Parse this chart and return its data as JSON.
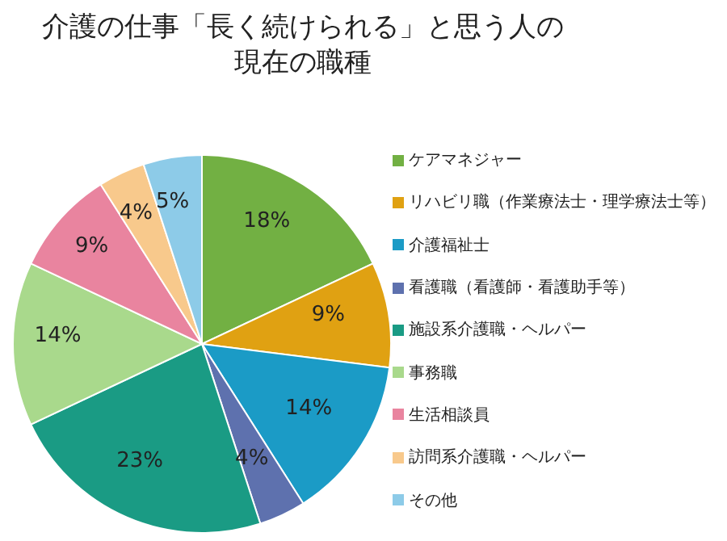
{
  "chart_data": {
    "type": "pie",
    "title": "介護の仕事「長く続けられる」と思う人の現在の職種",
    "categories": [
      "ケアマネジャー",
      "リハビリ職（作業療法士・理学療法士等）",
      "介護福祉士",
      "看護職（看護師・看護助手等）",
      "施設系介護職・ヘルパー",
      "事務職",
      "生活相談員",
      "訪問系介護職・ヘルパー",
      "その他"
    ],
    "values": [
      18,
      9,
      14,
      4,
      23,
      14,
      9,
      4,
      5
    ],
    "colors": [
      "#72b043",
      "#e0a112",
      "#1b9bc6",
      "#5e71ae",
      "#1a9b84",
      "#a9d98c",
      "#e9849f",
      "#f8c98c",
      "#8dcbe8"
    ],
    "value_labels": [
      "18%",
      "9%",
      "14%",
      "4%",
      "23%",
      "14%",
      "9%",
      "4%",
      "5%"
    ],
    "legend": "right"
  }
}
